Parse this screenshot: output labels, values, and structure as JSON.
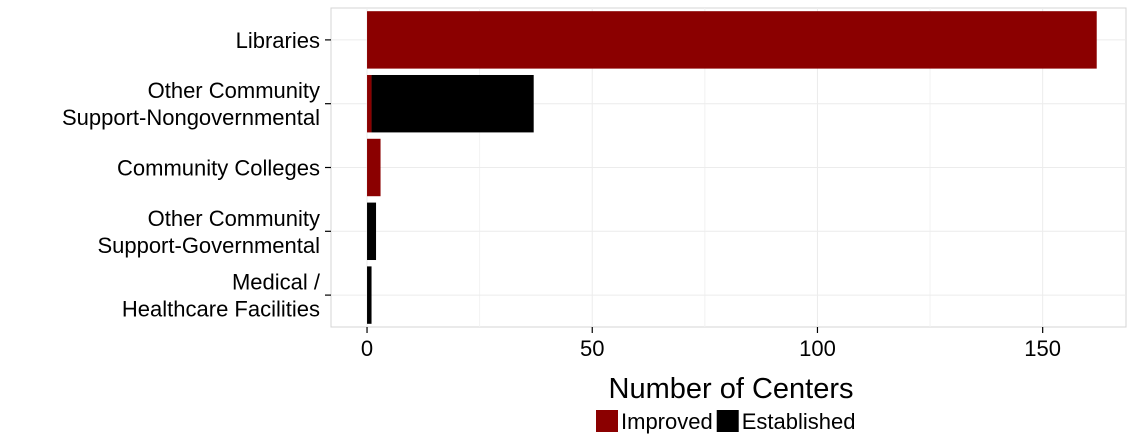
{
  "chart_data": {
    "type": "bar",
    "orientation": "horizontal",
    "stacked": true,
    "categories": [
      [
        "Libraries"
      ],
      [
        "Other Community",
        "Support-Nongovernmental"
      ],
      [
        "Community Colleges"
      ],
      [
        "Other Community",
        "Support-Governmental"
      ],
      [
        "Medical /",
        "Healthcare Facilities"
      ]
    ],
    "series": [
      {
        "name": "Improved",
        "color": "#8b0000",
        "values": [
          162,
          1,
          3,
          0,
          0
        ]
      },
      {
        "name": "Established",
        "color": "#000000",
        "values": [
          0,
          36,
          0,
          2,
          1
        ]
      }
    ],
    "xlabel": "Number of Centers",
    "ylabel": "",
    "xlim": [
      -8,
      168.5
    ],
    "xticks": [
      0,
      50,
      100,
      150
    ],
    "grid": true,
    "legend": "bottom"
  }
}
